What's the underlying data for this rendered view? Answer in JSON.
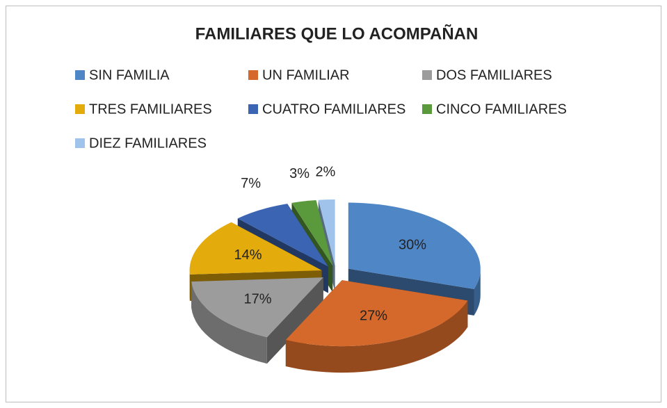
{
  "chart_data": {
    "type": "pie",
    "title": "FAMILIARES QUE LO ACOMPAÑAN",
    "categories": [
      "SIN FAMILIA",
      "UN FAMILIAR",
      "DOS FAMILIARES",
      "TRES FAMILIARES",
      "CUATRO FAMILIARES",
      "CINCO FAMILIARES",
      "DIEZ FAMILIARES"
    ],
    "values": [
      30,
      27,
      17,
      14,
      7,
      3,
      2
    ],
    "value_labels": [
      "30%",
      "27%",
      "17%",
      "14%",
      "7%",
      "3%",
      "2%"
    ],
    "colors": [
      "#4f86c6",
      "#d5692b",
      "#9c9c9c",
      "#e4ab0c",
      "#3b65b3",
      "#5b9a3c",
      "#9fc3ea"
    ],
    "legend": "top"
  }
}
